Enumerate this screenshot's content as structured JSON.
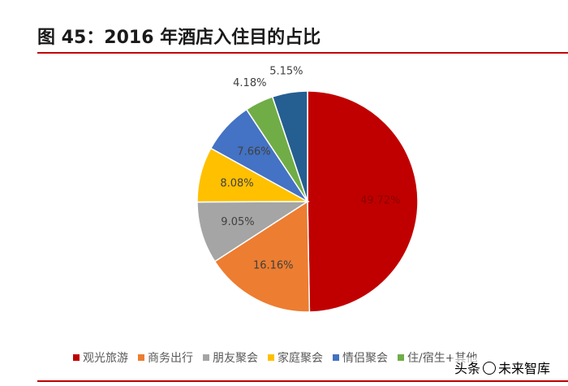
{
  "figure": {
    "title": "图 45：2016 年酒店入住目的占比"
  },
  "watermark": {
    "text_left": "头条",
    "text_right": "未来智库"
  },
  "chart_data": {
    "type": "pie",
    "title": "",
    "start_angle": "12-o'clock, clockwise",
    "legend_placement": "bottom",
    "series": [
      {
        "name": "观光旅游",
        "value": 49.72,
        "label": "49.72%",
        "color": "#C00000"
      },
      {
        "name": "商务出行",
        "value": 16.16,
        "label": "16.16%",
        "color": "#ED7D31"
      },
      {
        "name": "朋友聚会",
        "value": 9.05,
        "label": "9.05%",
        "color": "#A5A5A5"
      },
      {
        "name": "家庭聚会",
        "value": 8.08,
        "label": "8.08%",
        "color": "#FFC000"
      },
      {
        "name": "情侣聚会",
        "value": 7.66,
        "label": "7.66%",
        "color": "#4472C4"
      },
      {
        "name": "住/宿生+其他",
        "value": 4.18,
        "label": "4.18%",
        "color": "#70AD47"
      },
      {
        "name": "其他",
        "value": 5.15,
        "label": "5.15%",
        "color": "#255E91"
      }
    ]
  }
}
